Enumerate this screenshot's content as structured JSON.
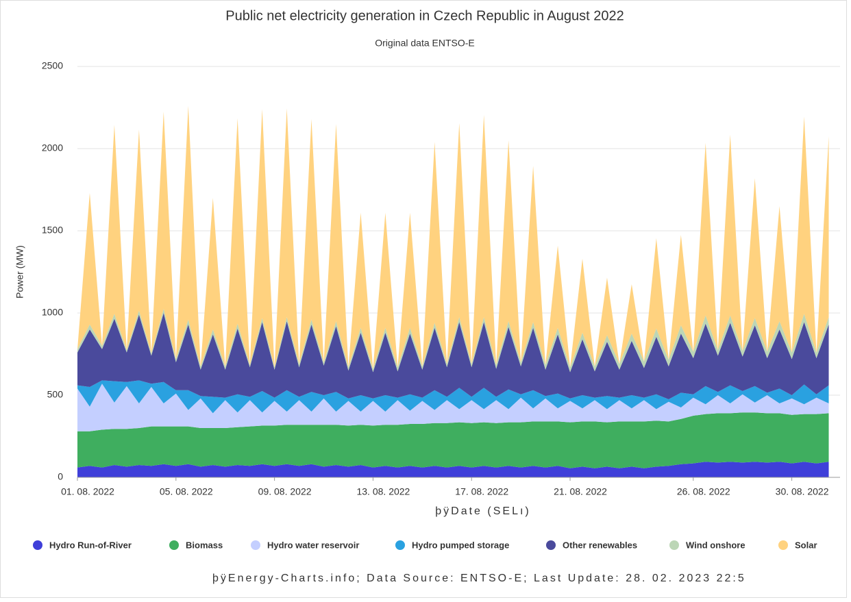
{
  "chart_data": {
    "type": "area",
    "stacked": true,
    "title": "Public net electricity generation in Czech Republic in August 2022",
    "subtitle": "Original data ENTSO-E",
    "y_label": "Power (MW)",
    "x_label": "þÿDate (SELı)",
    "footer": "þÿEnergy-Charts.info; Data Source: ENTSO-E; Last Update: 28. 02. 2023 22:5",
    "grid": true,
    "legend": "bottom",
    "x": [
      "2022-08-01T00:00",
      "2022-08-01T12:00",
      "2022-08-02T00:00",
      "2022-08-02T12:00",
      "2022-08-03T00:00",
      "2022-08-03T12:00",
      "2022-08-04T00:00",
      "2022-08-04T12:00",
      "2022-08-05T00:00",
      "2022-08-05T12:00",
      "2022-08-06T00:00",
      "2022-08-06T12:00",
      "2022-08-07T00:00",
      "2022-08-07T12:00",
      "2022-08-08T00:00",
      "2022-08-08T12:00",
      "2022-08-09T00:00",
      "2022-08-09T12:00",
      "2022-08-10T00:00",
      "2022-08-10T12:00",
      "2022-08-11T00:00",
      "2022-08-11T12:00",
      "2022-08-12T00:00",
      "2022-08-12T12:00",
      "2022-08-13T00:00",
      "2022-08-13T12:00",
      "2022-08-14T00:00",
      "2022-08-14T12:00",
      "2022-08-15T00:00",
      "2022-08-15T12:00",
      "2022-08-16T00:00",
      "2022-08-16T12:00",
      "2022-08-17T00:00",
      "2022-08-17T12:00",
      "2022-08-18T00:00",
      "2022-08-18T12:00",
      "2022-08-19T00:00",
      "2022-08-19T12:00",
      "2022-08-20T00:00",
      "2022-08-20T12:00",
      "2022-08-21T00:00",
      "2022-08-21T12:00",
      "2022-08-22T00:00",
      "2022-08-22T12:00",
      "2022-08-23T00:00",
      "2022-08-23T12:00",
      "2022-08-24T00:00",
      "2022-08-24T12:00",
      "2022-08-25T00:00",
      "2022-08-25T12:00",
      "2022-08-26T00:00",
      "2022-08-26T12:00",
      "2022-08-27T00:00",
      "2022-08-27T12:00",
      "2022-08-28T00:00",
      "2022-08-28T12:00",
      "2022-08-29T00:00",
      "2022-08-29T12:00",
      "2022-08-30T00:00",
      "2022-08-30T12:00",
      "2022-08-31T00:00",
      "2022-08-31T12:00"
    ],
    "xlim": [
      "2022-08-01T00:00",
      "2022-08-31T23:00"
    ],
    "xticks": [
      {
        "value": "2022-08-01T00:00",
        "label": "01. 08. 2022"
      },
      {
        "value": "2022-08-05T00:00",
        "label": "05. 08. 2022"
      },
      {
        "value": "2022-08-09T00:00",
        "label": "09. 08. 2022"
      },
      {
        "value": "2022-08-13T00:00",
        "label": "13. 08. 2022"
      },
      {
        "value": "2022-08-17T00:00",
        "label": "17. 08. 2022"
      },
      {
        "value": "2022-08-21T00:00",
        "label": "21. 08. 2022"
      },
      {
        "value": "2022-08-26T00:00",
        "label": "26. 08. 2022"
      },
      {
        "value": "2022-08-30T00:00",
        "label": "30. 08. 2022"
      }
    ],
    "ylim": [
      0,
      2500
    ],
    "yticks": [
      0,
      500,
      1000,
      1500,
      2000,
      2500
    ],
    "series": [
      {
        "name": "Hydro Run-of-River",
        "color": "#3f3fd9",
        "values": [
          60,
          70,
          60,
          75,
          65,
          75,
          70,
          80,
          70,
          80,
          65,
          75,
          65,
          75,
          70,
          80,
          70,
          80,
          70,
          80,
          65,
          75,
          65,
          75,
          60,
          70,
          60,
          70,
          60,
          70,
          60,
          70,
          60,
          70,
          60,
          70,
          60,
          70,
          60,
          70,
          55,
          65,
          55,
          65,
          55,
          65,
          55,
          65,
          70,
          80,
          85,
          95,
          90,
          95,
          90,
          95,
          90,
          95,
          85,
          95,
          85,
          95
        ]
      },
      {
        "name": "Biomass",
        "color": "#3fae5f",
        "values": [
          220,
          210,
          230,
          220,
          230,
          225,
          240,
          230,
          240,
          230,
          235,
          225,
          235,
          230,
          240,
          235,
          245,
          240,
          250,
          240,
          255,
          245,
          250,
          245,
          255,
          250,
          260,
          255,
          265,
          260,
          270,
          265,
          270,
          265,
          270,
          265,
          275,
          270,
          280,
          270,
          280,
          275,
          285,
          270,
          285,
          275,
          285,
          280,
          270,
          275,
          290,
          290,
          300,
          295,
          305,
          300,
          300,
          295,
          295,
          290,
          300,
          295
        ]
      },
      {
        "name": "Hydro water reservoir",
        "color": "#c4cfff",
        "values": [
          260,
          150,
          280,
          160,
          260,
          150,
          240,
          140,
          200,
          100,
          180,
          90,
          170,
          90,
          160,
          80,
          150,
          80,
          150,
          80,
          160,
          80,
          150,
          80,
          150,
          80,
          150,
          80,
          140,
          80,
          140,
          80,
          140,
          80,
          140,
          80,
          150,
          80,
          140,
          80,
          130,
          80,
          130,
          80,
          130,
          80,
          130,
          70,
          120,
          70,
          110,
          60,
          110,
          60,
          110,
          60,
          110,
          60,
          100,
          60,
          100,
          60
        ]
      },
      {
        "name": "Hydro pumped storage",
        "color": "#2aa1e0",
        "values": [
          20,
          120,
          20,
          130,
          25,
          140,
          20,
          130,
          20,
          120,
          15,
          100,
          15,
          110,
          20,
          130,
          20,
          130,
          20,
          120,
          20,
          120,
          15,
          100,
          15,
          100,
          15,
          100,
          20,
          120,
          20,
          130,
          20,
          130,
          20,
          120,
          20,
          110,
          15,
          90,
          15,
          80,
          15,
          80,
          15,
          80,
          15,
          90,
          15,
          90,
          20,
          110,
          20,
          110,
          20,
          100,
          15,
          90,
          20,
          120,
          20,
          110
        ]
      },
      {
        "name": "Other renewables",
        "color": "#4a4a9c",
        "values": [
          200,
          350,
          190,
          380,
          180,
          400,
          170,
          420,
          170,
          400,
          160,
          380,
          170,
          400,
          180,
          420,
          170,
          420,
          180,
          410,
          180,
          400,
          170,
          380,
          160,
          380,
          160,
          370,
          170,
          380,
          180,
          400,
          180,
          400,
          170,
          380,
          170,
          380,
          160,
          360,
          160,
          340,
          160,
          330,
          170,
          330,
          180,
          350,
          200,
          360,
          220,
          380,
          220,
          380,
          210,
          370,
          210,
          360,
          220,
          380,
          220,
          370
        ]
      },
      {
        "name": "Wind onshore",
        "color": "#bcd6b6",
        "values": [
          20,
          30,
          20,
          30,
          15,
          25,
          15,
          25,
          20,
          30,
          20,
          30,
          20,
          30,
          15,
          25,
          15,
          25,
          20,
          30,
          20,
          30,
          20,
          30,
          20,
          30,
          25,
          35,
          20,
          30,
          20,
          30,
          20,
          30,
          25,
          35,
          25,
          35,
          30,
          40,
          30,
          40,
          30,
          40,
          35,
          45,
          40,
          50,
          40,
          50,
          40,
          50,
          35,
          45,
          35,
          45,
          40,
          50,
          40,
          50,
          35,
          45
        ]
      },
      {
        "name": "Solar",
        "color": "#ffd27f",
        "values": [
          0,
          800,
          0,
          1150,
          0,
          1100,
          0,
          1200,
          0,
          1300,
          0,
          800,
          0,
          1250,
          0,
          1270,
          0,
          1270,
          0,
          1220,
          0,
          1200,
          0,
          700,
          0,
          700,
          0,
          700,
          0,
          1100,
          0,
          1180,
          0,
          1230,
          0,
          1100,
          0,
          950,
          0,
          500,
          0,
          450,
          0,
          350,
          0,
          300,
          0,
          550,
          0,
          550,
          0,
          1050,
          0,
          1100,
          0,
          850,
          0,
          700,
          0,
          1200,
          0,
          1100
        ]
      }
    ]
  }
}
